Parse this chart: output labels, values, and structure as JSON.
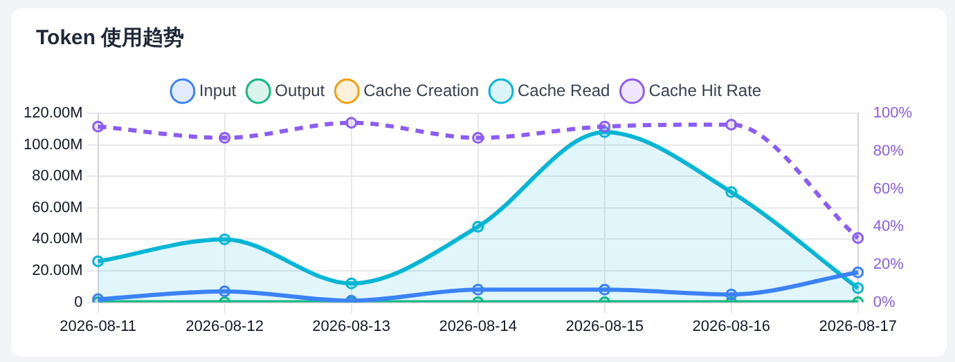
{
  "chart_data": {
    "type": "line",
    "title": "Token 使用趋势",
    "categories": [
      "2026-08-11",
      "2026-08-12",
      "2026-08-13",
      "2026-08-14",
      "2026-08-15",
      "2026-08-16",
      "2026-08-17"
    ],
    "series": [
      {
        "name": "Input",
        "color": "#3b82f6",
        "values": [
          2,
          7,
          1,
          8,
          8,
          5,
          19
        ]
      },
      {
        "name": "Output",
        "color": "#10b981",
        "values": [
          0,
          0,
          0,
          0,
          0,
          0,
          0
        ]
      },
      {
        "name": "Cache Creation",
        "color": "#f59e0b",
        "values": [
          null,
          null,
          null,
          null,
          null,
          null,
          null
        ]
      },
      {
        "name": "Cache Read",
        "color": "#06b6d4",
        "type": "area",
        "values": [
          26,
          40,
          12,
          48,
          108,
          70,
          9
        ]
      },
      {
        "name": "Cache Hit Rate",
        "color": "#8b5cf6",
        "axis": "y2",
        "line_style": "dashed",
        "values": [
          93,
          87,
          95,
          87,
          93,
          94,
          34
        ]
      }
    ],
    "ylim": [
      0,
      120
    ],
    "yticks": [
      0,
      {
        "value": 20,
        "label": "20.00M"
      },
      {
        "value": 40,
        "label": "40.00M"
      },
      {
        "value": 60,
        "label": "60.00M"
      },
      {
        "value": 80,
        "label": "80.00M"
      },
      {
        "value": 100,
        "label": "100.00M"
      },
      {
        "value": 120,
        "label": "120.00M"
      }
    ],
    "y2lim": [
      0,
      100
    ],
    "y2ticks": [
      {
        "value": 0,
        "label": "0%"
      },
      {
        "value": 20,
        "label": "20%"
      },
      {
        "value": 40,
        "label": "40%"
      },
      {
        "value": 60,
        "label": "60%"
      },
      {
        "value": 80,
        "label": "80%"
      },
      {
        "value": 100,
        "label": "100%"
      }
    ],
    "grid": true,
    "legend": "top",
    "marker": "circle"
  }
}
